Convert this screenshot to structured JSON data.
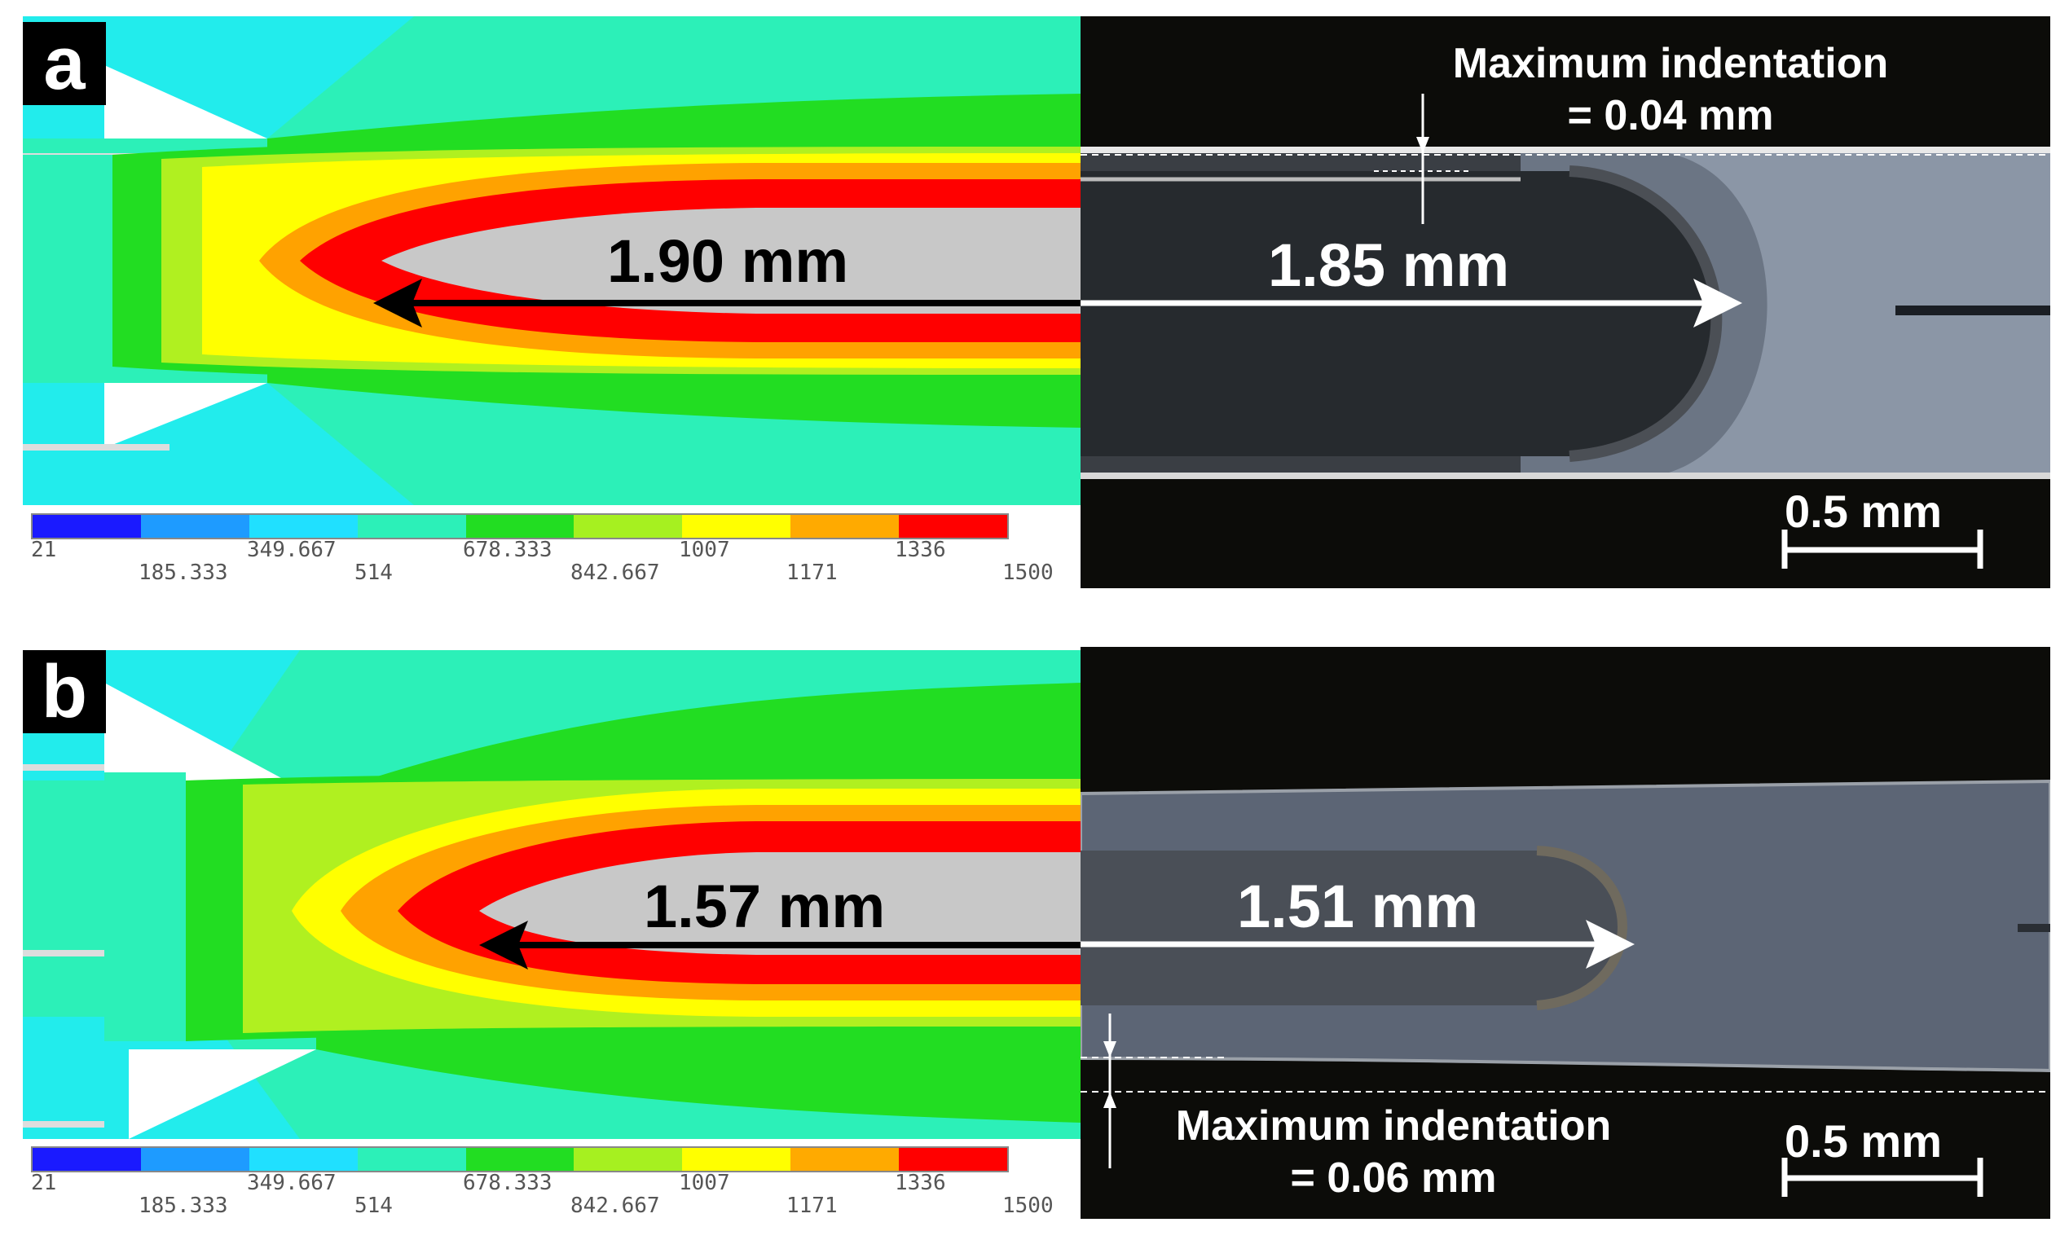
{
  "panels": [
    {
      "letter": "a",
      "sim_measurement": "1.90 mm",
      "micro_measurement": "1.85 mm",
      "indentation_title": "Maximum indentation",
      "indentation_value": "=  0.04 mm",
      "scale_bar": "0.5 mm"
    },
    {
      "letter": "b",
      "sim_measurement": "1.57 mm",
      "micro_measurement": "1.51 mm",
      "indentation_title": "Maximum indentation",
      "indentation_value": "=  0.06 mm",
      "scale_bar": "0.5 mm"
    }
  ],
  "legend": {
    "ticks_top": [
      "21",
      "349.667",
      "678.333",
      "1007",
      "1336"
    ],
    "ticks_bottom": [
      "185.333",
      "514",
      "842.667",
      "1171",
      "1500"
    ],
    "colors": [
      "#1a1aff",
      "#1e9bff",
      "#20e0ff",
      "#2cf0b8",
      "#22dd22",
      "#a6f020",
      "#ffff00",
      "#ffaa00",
      "#ff0000"
    ]
  },
  "colors": {
    "gray": "#c8c8c8",
    "red": "#ff0000",
    "orange": "#ffa200",
    "yellow": "#ffff00",
    "lime": "#b0f020",
    "green": "#22dd22",
    "teal": "#2cf0b8",
    "cyan": "#22ecec"
  }
}
